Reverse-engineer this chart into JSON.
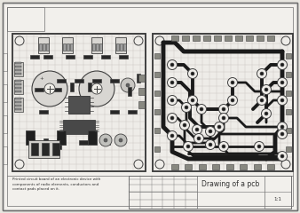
{
  "bg_color": "#e8e6e0",
  "paper_color": "#f2f0ec",
  "border_color": "#707070",
  "line_color": "#404040",
  "grid_color": "#c0bdb8",
  "text_color": "#303030",
  "trace_color": "#1a1a1a",
  "title": "Drawing of a pcb",
  "description": "Printed circuit board of an electronic device with\ncomponents of radio elements, conductors and\ncontact pads placed on it.",
  "scale": "1:1"
}
